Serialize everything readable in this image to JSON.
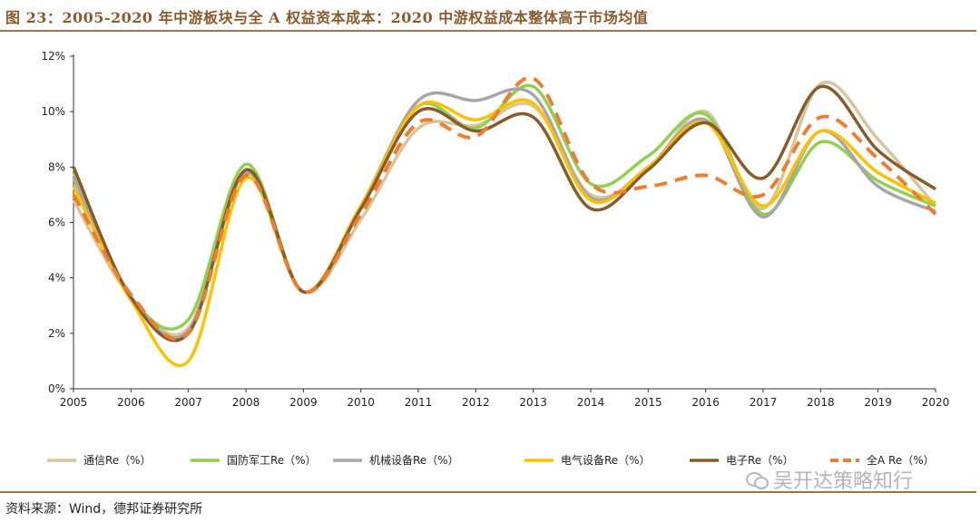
{
  "header": {
    "title": "图 23：2005-2020 年中游板块与全 A 权益资本成本：2020 中游权益成本整体高于市场均值"
  },
  "footer": {
    "source": "资料来源：Wind，德邦证券研究所"
  },
  "watermark": {
    "text": "吴开达策略知行"
  },
  "chart_data": {
    "type": "line",
    "title": "",
    "xlabel": "",
    "ylabel": "",
    "x": [
      "2005",
      "2006",
      "2007",
      "2008",
      "2009",
      "2010",
      "2011",
      "2012",
      "2013",
      "2014",
      "2015",
      "2016",
      "2017",
      "2018",
      "2019",
      "2020"
    ],
    "ylim": [
      0,
      12
    ],
    "yticks": [
      "0%",
      "2%",
      "4%",
      "6%",
      "8%",
      "10%",
      "12%"
    ],
    "yticks_values": [
      0,
      2,
      4,
      6,
      8,
      10,
      12
    ],
    "legend_position": "bottom",
    "series": [
      {
        "name": "通信Re（%）",
        "color": "#d9c59c",
        "dashed": false,
        "values": [
          6.8,
          3.3,
          2.2,
          7.8,
          3.5,
          6.1,
          9.4,
          9.5,
          10.2,
          7.0,
          7.9,
          10.0,
          6.5,
          11.0,
          9.0,
          6.6
        ]
      },
      {
        "name": "国防军工Re（%）",
        "color": "#8fd14f",
        "dashed": false,
        "values": [
          7.8,
          3.3,
          2.5,
          8.1,
          3.5,
          6.5,
          10.2,
          9.4,
          10.9,
          7.4,
          8.4,
          9.9,
          6.3,
          8.9,
          7.5,
          6.6
        ]
      },
      {
        "name": "机械设备Re（%）",
        "color": "#a6a6a6",
        "dashed": false,
        "values": [
          7.6,
          3.3,
          2.1,
          7.8,
          3.5,
          6.6,
          10.4,
          10.4,
          10.6,
          6.9,
          8.0,
          9.7,
          6.2,
          9.3,
          7.3,
          6.4
        ]
      },
      {
        "name": "电气设备Re（%）",
        "color": "#ffc000",
        "dashed": false,
        "values": [
          7.3,
          3.2,
          1.0,
          7.6,
          3.5,
          6.6,
          10.2,
          9.7,
          10.3,
          6.8,
          8.0,
          9.6,
          6.6,
          9.3,
          7.8,
          6.7
        ]
      },
      {
        "name": "电子Re（%）",
        "color": "#8b5a2b",
        "dashed": false,
        "values": [
          8.0,
          3.3,
          2.0,
          7.9,
          3.5,
          6.5,
          10.0,
          9.3,
          9.8,
          6.5,
          7.9,
          9.6,
          7.6,
          10.9,
          8.6,
          7.2
        ]
      },
      {
        "name": "全A Re（%）",
        "color": "#ed7d31",
        "dashed": true,
        "values": [
          7.0,
          3.4,
          2.0,
          7.7,
          3.5,
          6.3,
          9.6,
          9.1,
          11.2,
          7.4,
          7.3,
          7.7,
          7.0,
          9.8,
          8.3,
          6.3
        ]
      }
    ]
  }
}
